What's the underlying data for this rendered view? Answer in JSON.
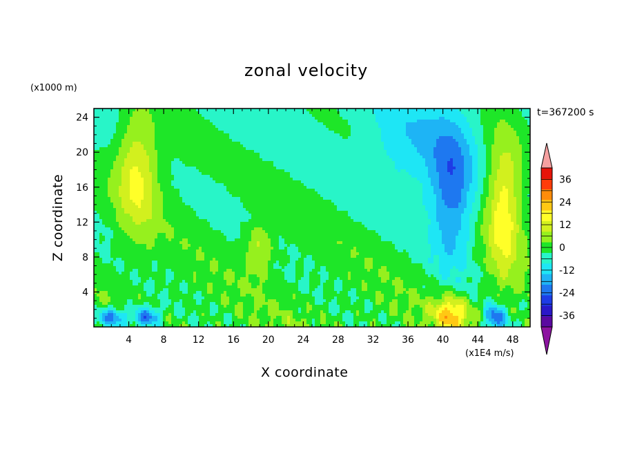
{
  "chart_data": {
    "type": "heatmap",
    "title": "zonal velocity",
    "xlabel": "X coordinate",
    "ylabel": "Z coordinate",
    "x_unit_label": "(x1E4 m/s)",
    "z_unit_label": "(x1000 m)",
    "time_label": "t=367200 s",
    "xlim": [
      0,
      50
    ],
    "ylim": [
      0,
      25
    ],
    "x_ticks": [
      4,
      8,
      12,
      16,
      20,
      24,
      28,
      32,
      36,
      40,
      44,
      48
    ],
    "y_ticks": [
      4,
      8,
      12,
      16,
      20,
      24
    ],
    "colorbar": {
      "range": [
        -42,
        42
      ],
      "levels": [
        -42,
        -36,
        -30,
        -24,
        -18,
        -12,
        -6,
        0,
        6,
        12,
        18,
        24,
        30,
        36,
        42
      ],
      "tick_labels": [
        "-36",
        "-24",
        "-12",
        "0",
        "12",
        "24",
        "36"
      ],
      "colors": [
        "#5a0aa0",
        "#2a18c8",
        "#1e3ce6",
        "#1e78f0",
        "#1eb4f5",
        "#1ee6f5",
        "#28f5c8",
        "#1ee628",
        "#96f01e",
        "#d2f01e",
        "#ffff28",
        "#ffc814",
        "#ff8c0a",
        "#ff3c0a",
        "#e6140a"
      ],
      "over_color": "#f5a0a0",
      "under_color": "#8c14a0"
    },
    "features": [
      {
        "x": 5,
        "z": 18,
        "value": 20,
        "sx": 2.5,
        "sz": 7
      },
      {
        "x": 47,
        "z": 14,
        "value": 22,
        "sx": 2,
        "sz": 8
      },
      {
        "x": 41,
        "z": 15,
        "value": -22,
        "sx": 2.5,
        "sz": 8
      },
      {
        "x": 36,
        "z": 20,
        "value": -10,
        "sx": 5,
        "sz": 6
      },
      {
        "x": 2,
        "z": 1,
        "value": -24,
        "sx": 2,
        "sz": 1.2
      },
      {
        "x": 6,
        "z": 1,
        "value": -26,
        "sx": 1.5,
        "sz": 1.2
      },
      {
        "x": 46,
        "z": 1,
        "value": -26,
        "sx": 1.2,
        "sz": 1.5
      },
      {
        "x": 41,
        "z": 1.5,
        "value": 24,
        "sx": 2,
        "sz": 2
      },
      {
        "x": 19,
        "z": 9,
        "value": 14,
        "sx": 1.5,
        "sz": 3
      },
      {
        "x": 10,
        "z": 18,
        "value": 2,
        "sx": 3,
        "sz": 8
      }
    ]
  }
}
